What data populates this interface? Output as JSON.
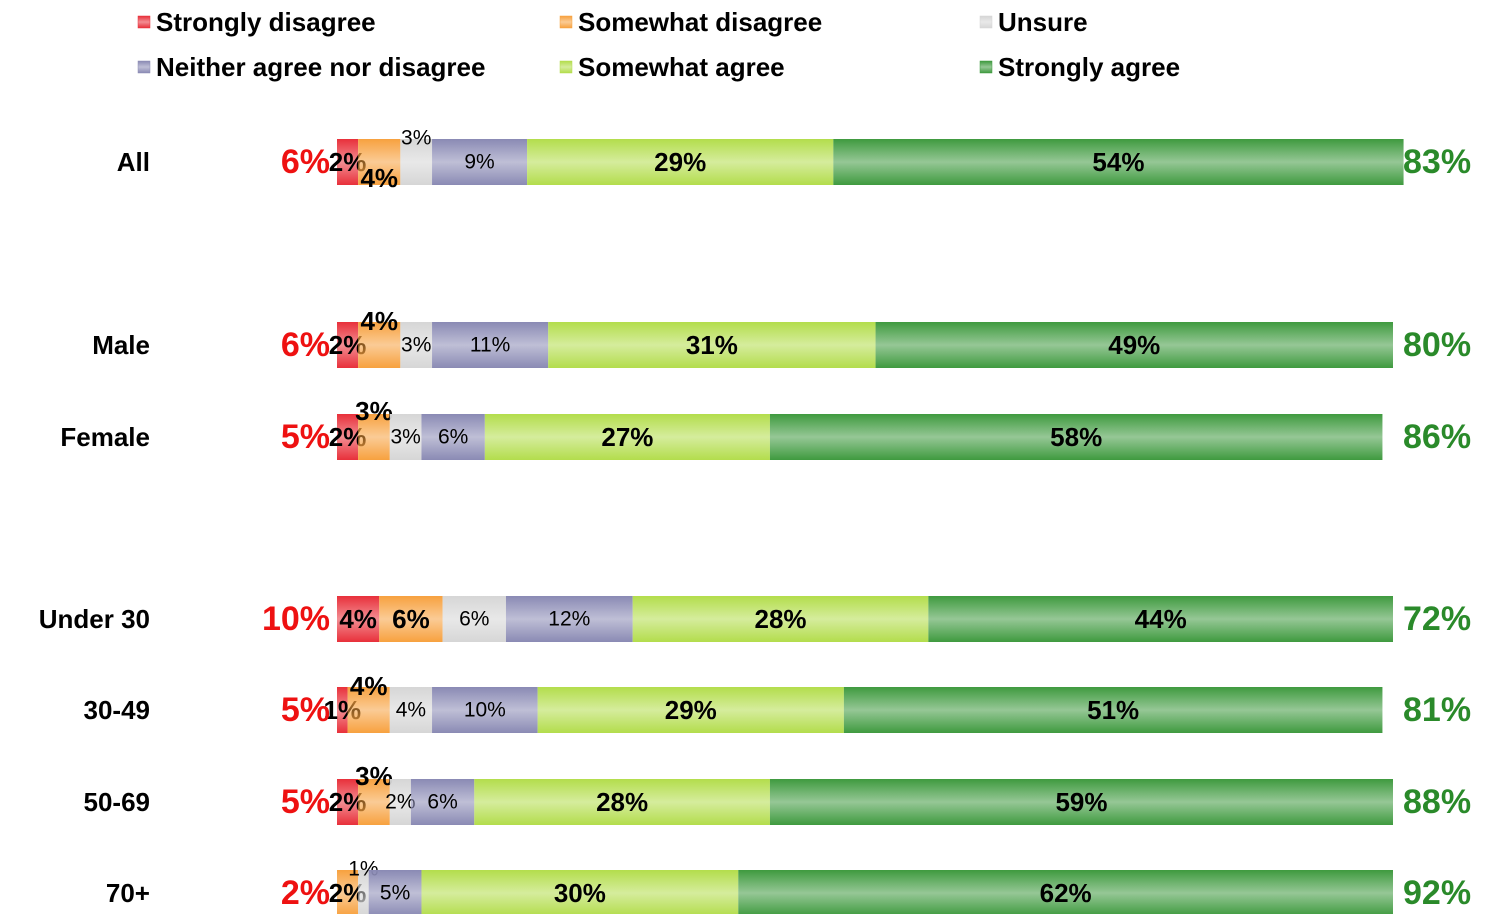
{
  "chart_data": {
    "type": "stacked_bar_horizontal",
    "categories": [
      "All",
      "Male",
      "Female",
      "Under 30",
      "30-49",
      "50-69",
      "70+"
    ],
    "xlim": [
      0,
      100
    ],
    "series": [
      {
        "name": "Strongly disagree",
        "color": "#e8303a",
        "values": [
          2,
          2,
          2,
          4,
          1,
          2,
          0
        ],
        "value_labels": [
          "2%",
          "2%",
          "2%",
          "4%",
          "1%",
          "2%",
          null
        ]
      },
      {
        "name": "Somewhat disagree",
        "color": "#f7a13f",
        "values": [
          4,
          4,
          3,
          6,
          4,
          3,
          2
        ],
        "value_labels": [
          "4%",
          "4%",
          "3%",
          "6%",
          "4%",
          "3%",
          "2%"
        ]
      },
      {
        "name": "Unsure",
        "color": "#d6d6d6",
        "values": [
          3,
          3,
          3,
          6,
          4,
          2,
          1
        ],
        "value_labels": [
          "3%",
          "3%",
          "3%",
          "6%",
          "4%",
          "2%",
          "1%"
        ]
      },
      {
        "name": "Neither agree nor disagree",
        "color": "#8a8ab4",
        "values": [
          9,
          11,
          6,
          12,
          10,
          6,
          5
        ],
        "value_labels": [
          "9%",
          "11%",
          "6%",
          "12%",
          "10%",
          "6%",
          "5%"
        ]
      },
      {
        "name": "Somewhat agree",
        "color": "#b3dd4c",
        "values": [
          29,
          31,
          27,
          28,
          29,
          28,
          30
        ],
        "value_labels": [
          "29%",
          "31%",
          "27%",
          "28%",
          "29%",
          "28%",
          "30%"
        ]
      },
      {
        "name": "Strongly agree",
        "color": "#3f9a3f",
        "values": [
          54,
          49,
          58,
          44,
          51,
          59,
          62
        ],
        "value_labels": [
          "54%",
          "49%",
          "58%",
          "44%",
          "51%",
          "59%",
          "62%"
        ]
      }
    ],
    "disagree_totals": [
      6,
      6,
      5,
      10,
      5,
      5,
      2
    ],
    "disagree_total_labels": [
      "6%",
      "6%",
      "5%",
      "10%",
      "5%",
      "5%",
      "2%"
    ],
    "agree_totals": [
      83,
      80,
      86,
      72,
      81,
      88,
      92
    ],
    "agree_total_labels": [
      "83%",
      "80%",
      "86%",
      "72%",
      "81%",
      "88%",
      "92%"
    ]
  }
}
